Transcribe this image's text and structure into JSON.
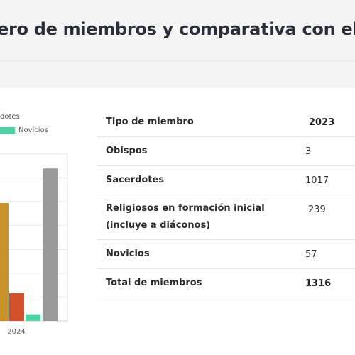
{
  "page": {
    "title": "ero de miembros y comparativa con el"
  },
  "chart_data": {
    "type": "bar",
    "legend": [
      {
        "name": "dotes",
        "color": "#c7922b"
      },
      {
        "name": "Novicios",
        "color": "#4fd1a5"
      }
    ],
    "categories": [
      "2024"
    ],
    "series": [
      {
        "name": "dotes",
        "color": "#c7922b",
        "values": [
          1017
        ]
      },
      {
        "name": "",
        "color": "#d2512b",
        "values": [
          239
        ]
      },
      {
        "name": "Novicios",
        "color": "#4fd1a5",
        "values": [
          57
        ]
      },
      {
        "name": "",
        "color": "#9a9a9a",
        "values": [
          1316
        ]
      }
    ],
    "ylim": [
      0,
      1440
    ],
    "grid": true
  },
  "table": {
    "header": {
      "label": "Tipo de miembro",
      "year": "2023"
    },
    "rows": [
      {
        "label": "Obispos",
        "value": "3"
      },
      {
        "label": "Sacerdotes",
        "value": "1017"
      },
      {
        "label_line1": "Religiosos en formación inicial",
        "label_line2": "(incluye a diáconos)",
        "value": "239"
      },
      {
        "label": "Novicios",
        "value": "57"
      },
      {
        "label": "Total de miembros",
        "value": "1316"
      }
    ]
  }
}
